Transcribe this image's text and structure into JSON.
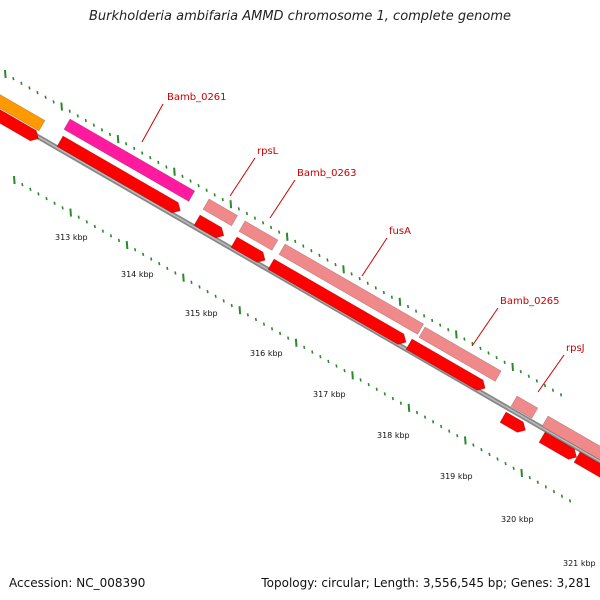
{
  "title": "Burkholderia ambifaria AMMD chromosome 1, complete genome",
  "accession": "Accession: NC_008390",
  "summary": "Topology: circular; Length: 3,556,545 bp; Genes: 3,281",
  "colors": {
    "backbone": "#777777",
    "cds": "#ff0000",
    "gene_orange": "#ff9900",
    "gene_magenta": "#ff1aa0",
    "gene_pink": "#f08a8a",
    "tick": "#2a8a2a",
    "label": "#cc0000"
  },
  "scale_labels": [
    "313 kbp",
    "314 kbp",
    "315 kbp",
    "316 kbp",
    "317 kbp",
    "318 kbp",
    "319 kbp",
    "320 kbp",
    "321 kbp"
  ],
  "genes": [
    {
      "name": "Bamb_0261",
      "color": "magenta"
    },
    {
      "name": "rpsL",
      "color": "pink"
    },
    {
      "name": "Bamb_0263",
      "color": "pink"
    },
    {
      "name": "fusA",
      "color": "pink"
    },
    {
      "name": "Bamb_0265",
      "color": "pink"
    },
    {
      "name": "rpsJ",
      "color": "pink"
    }
  ]
}
